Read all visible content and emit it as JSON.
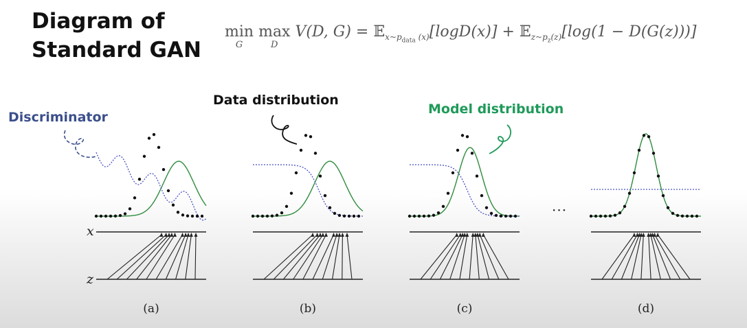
{
  "title": {
    "line1": "Diagram of",
    "line2": "Standard GAN"
  },
  "formula": {
    "min": "min",
    "min_sub": "G",
    "max": "max",
    "max_sub": "D",
    "value_fn": "V(D, G) = ",
    "expect": "𝔼",
    "sub1": "x~p",
    "sub1_sub": "data",
    "sub1_tail": "(x)",
    "term1": "[logD(x)] + ",
    "sub2": "z~p",
    "sub2_sub": "z",
    "sub2_tail": "(z)",
    "term2": "[log(1 − D(G(z)))]"
  },
  "labels": {
    "discriminator": "Discriminator",
    "data_distribution": "Data distribution",
    "model_distribution": "Model distribution"
  },
  "axes": {
    "x": "x",
    "z": "z"
  },
  "panels": [
    {
      "label": "(a)",
      "model_mean_shift": 38,
      "model_sigma": 22,
      "model_height": 80,
      "discriminator": "wavy"
    },
    {
      "label": "(b)",
      "model_mean_shift": 32,
      "model_sigma": 22,
      "model_height": 80,
      "discriminator": "sigmoid"
    },
    {
      "label": "(c)",
      "model_mean_shift": 8,
      "model_sigma": 17,
      "model_height": 100,
      "discriminator": "sigmoid"
    },
    {
      "label": "(d)",
      "model_mean_shift": 0,
      "model_sigma": 15,
      "model_height": 120,
      "discriminator": "flat"
    }
  ],
  "ellipsis": "···",
  "colors": {
    "data": "#111111",
    "model": "#2e8b3d",
    "discriminator": "#4a52c4",
    "text_blue": "#3c4f8c",
    "text_green": "#1f9a5a"
  }
}
